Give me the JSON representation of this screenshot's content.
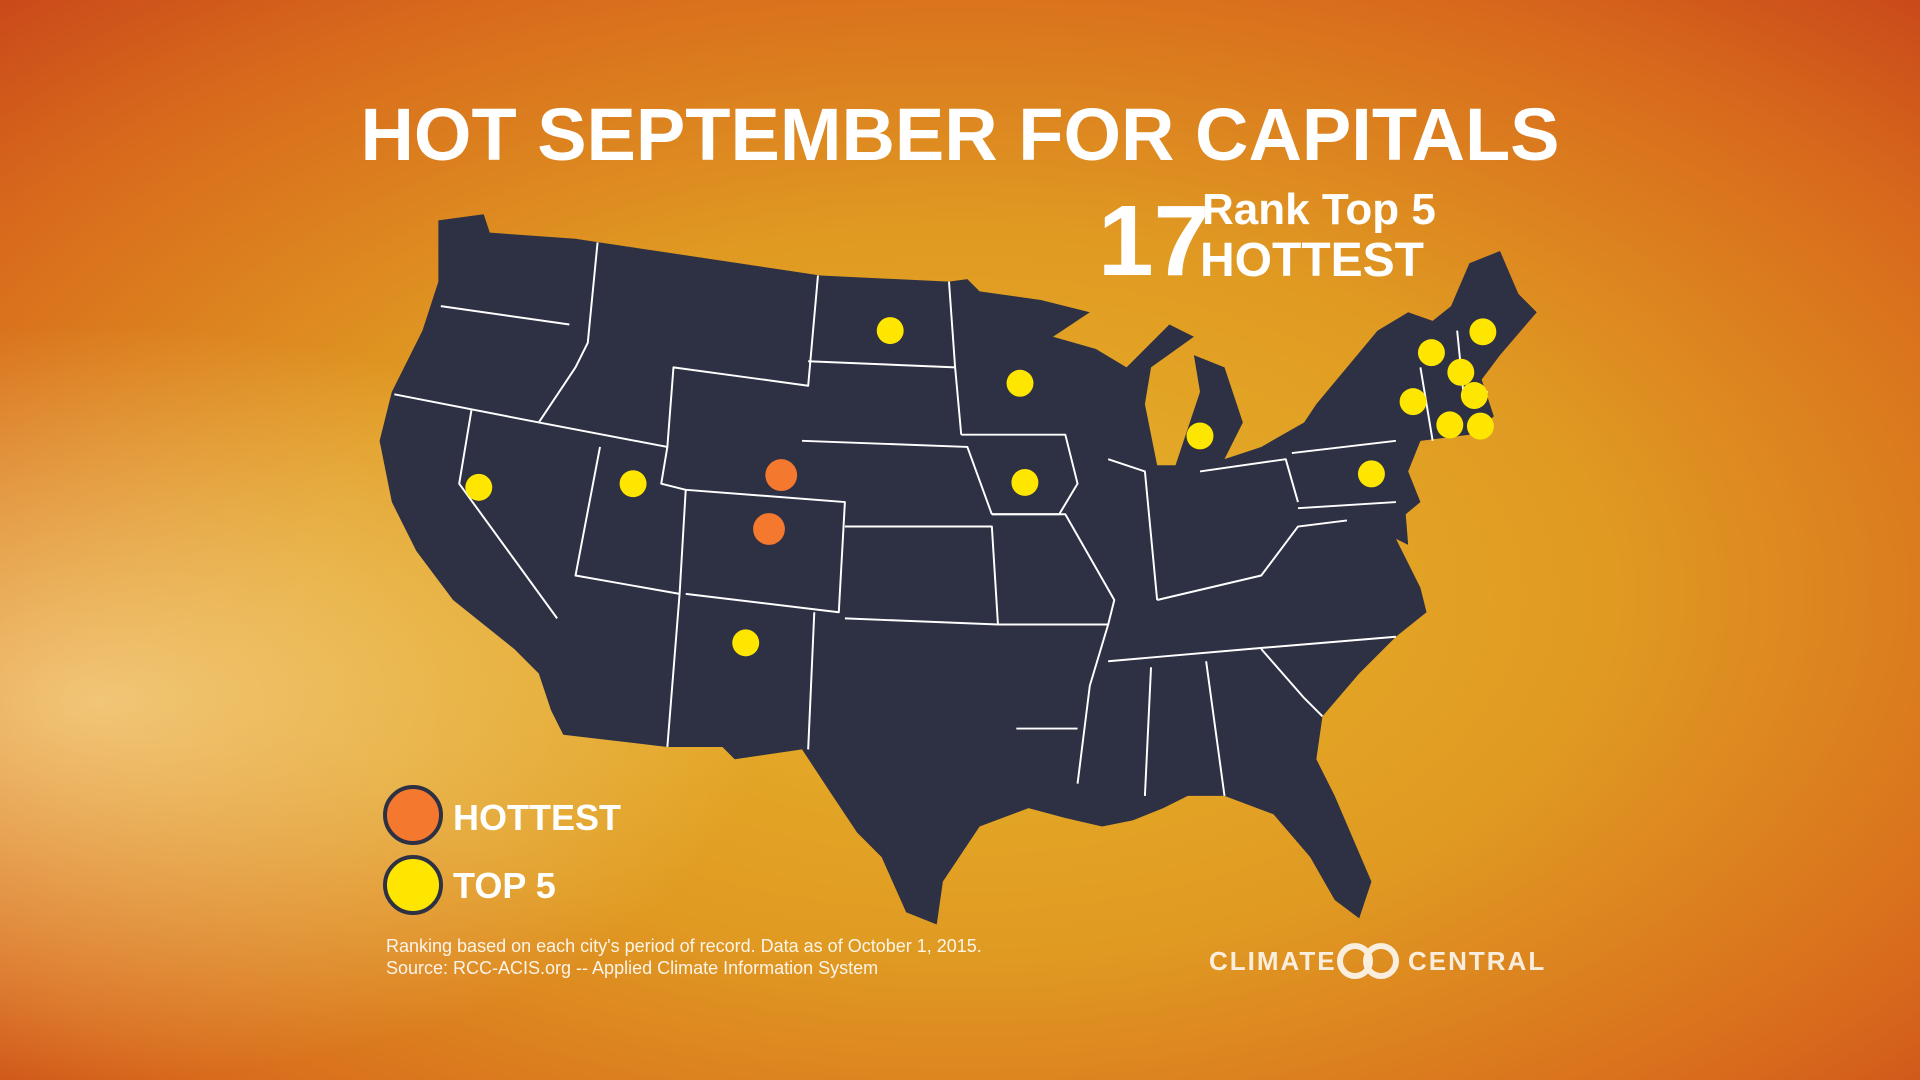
{
  "header": {
    "title": "HOT SEPTEMBER FOR CAPITALS"
  },
  "stat": {
    "number": "17",
    "line1": "Rank Top 5",
    "line2": "HOTTEST"
  },
  "legend": [
    {
      "label": "HOTTEST"
    },
    {
      "label": "TOP 5"
    }
  ],
  "footnote": [
    "Ranking based on each city's period of record. Data as of October 1, 2015.",
    "Source: RCC-ACIS.org -- Applied Climate Information System"
  ],
  "logo": [
    "CLIMATE",
    "CENTRAL"
  ]
}
